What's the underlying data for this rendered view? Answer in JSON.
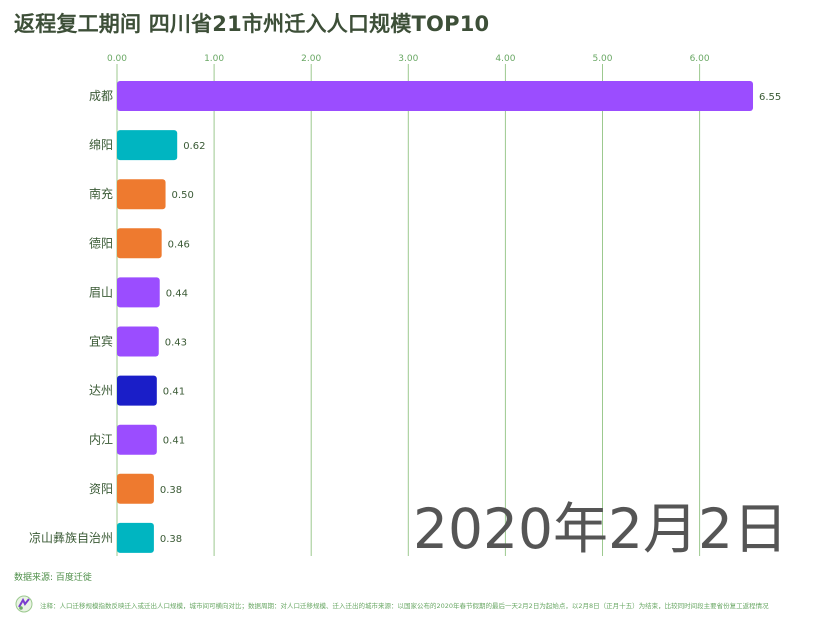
{
  "title": "返程复工期间 四川省21市州迁入人口规模TOP10",
  "date_label": "2020年2月2日",
  "source": "数据来源: 百度迁徙",
  "footnote": "注释：人口迁移规模指数反映迁入或迁出人口规模，城市间可横向对比；数据周期：对人口迁移规模、迁入迁出的城市来源：以国家公布的2020年春节假期的最后一天2月2日为起始点，以2月8日（正月十五）为结束，比较同时间段主要省份复工返程情况",
  "colors": {
    "title": "#3d4f38",
    "purple": "#9b4dff",
    "teal": "#00b5c1",
    "orange": "#ee7a2f",
    "navy": "#1a1ec8",
    "grid": "#9cc98f",
    "tick": "#6aa865",
    "label": "#3a5a35"
  },
  "chart_data": {
    "type": "bar",
    "orientation": "horizontal",
    "title": "返程复工期间 四川省21市州迁入人口规模TOP10",
    "categories": [
      "成都",
      "绵阳",
      "南充",
      "德阳",
      "眉山",
      "宜宾",
      "达州",
      "内江",
      "资阳",
      "凉山彝族自治州"
    ],
    "values": [
      6.55,
      0.62,
      0.5,
      0.46,
      0.44,
      0.43,
      0.41,
      0.41,
      0.38,
      0.38
    ],
    "value_labels": [
      "6.55",
      "0.62",
      "0.50",
      "0.46",
      "0.44",
      "0.43",
      "0.41",
      "0.41",
      "0.38",
      "0.38"
    ],
    "bar_colors": [
      "purple",
      "teal",
      "orange",
      "orange",
      "purple",
      "purple",
      "navy",
      "purple",
      "orange",
      "teal"
    ],
    "xticks": [
      0,
      1,
      2,
      3,
      4,
      5,
      6
    ],
    "xtick_labels": [
      "0.00",
      "1.00",
      "2.00",
      "3.00",
      "4.00",
      "5.00",
      "6.00"
    ],
    "xlim": [
      0,
      6.55
    ],
    "grid": true,
    "xlabel": "",
    "ylabel": ""
  }
}
